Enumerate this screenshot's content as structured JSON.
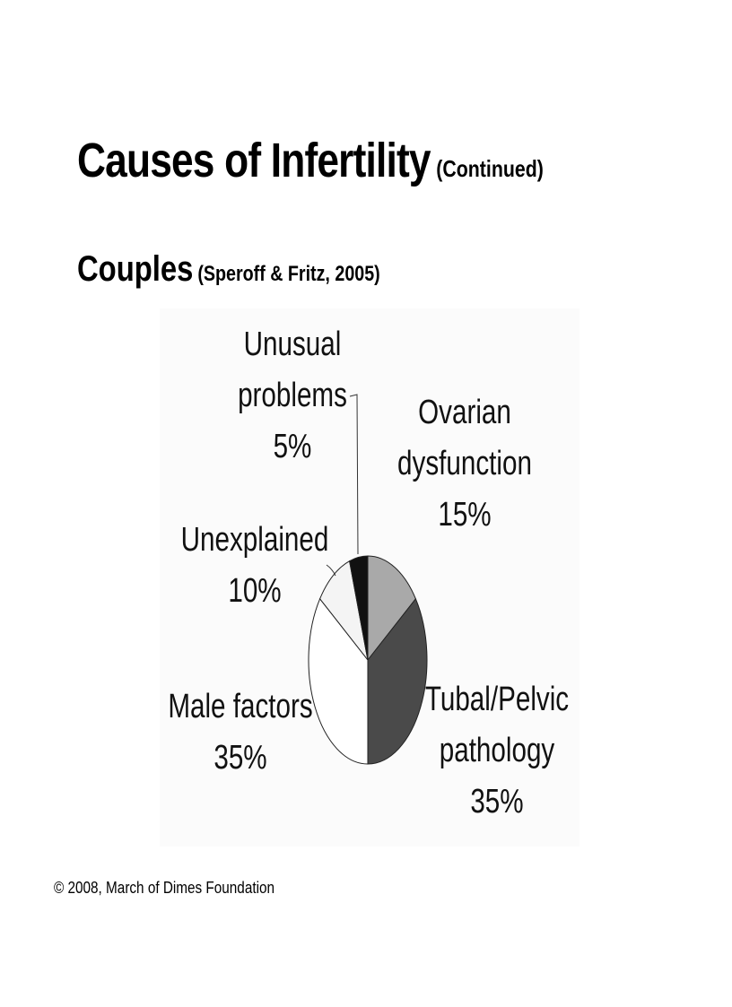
{
  "slide": {
    "title": "Causes of Infertility",
    "title_suffix": "(Continued)",
    "subtitle": "Couples",
    "subtitle_suffix": "(Speroff & Fritz, 2005)",
    "footer": "© 2008, March of Dimes Foundation"
  },
  "chart_data": {
    "type": "pie",
    "title": "",
    "slices": [
      {
        "label": [
          "Ovarian",
          "dysfunction"
        ],
        "value": 15,
        "value_label": "15%",
        "color": "#a9a9a9"
      },
      {
        "label": [
          "Tubal/Pelvic",
          "pathology"
        ],
        "value": 35,
        "value_label": "35%",
        "color": "#4a4a4a"
      },
      {
        "label": [
          "Male factors"
        ],
        "value": 35,
        "value_label": "35%",
        "color": "#ffffff"
      },
      {
        "label": [
          "Unexplained"
        ],
        "value": 10,
        "value_label": "10%",
        "color": "#f4f4f4"
      },
      {
        "label": [
          "Unusual",
          "problems"
        ],
        "value": 5,
        "value_label": "5%",
        "color": "#111111"
      }
    ]
  }
}
